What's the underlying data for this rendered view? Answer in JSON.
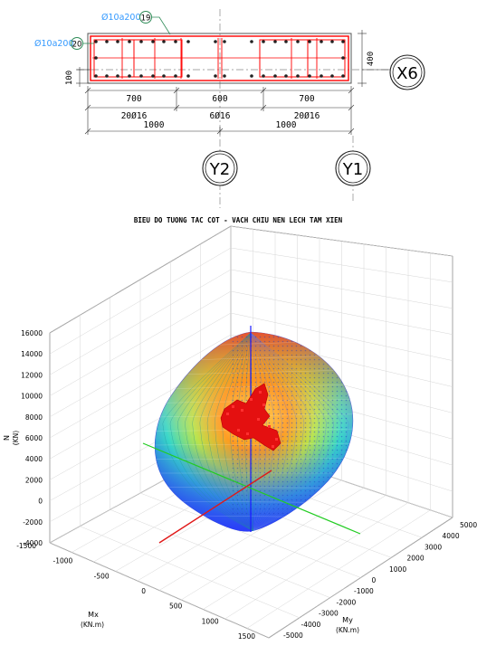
{
  "section": {
    "tags": [
      {
        "text": "Ø10a200",
        "num": "19"
      },
      {
        "text": "Ø10a200",
        "num": "20"
      }
    ],
    "dims_top": [
      "700",
      "600",
      "700"
    ],
    "dims_bars": [
      "20Ø16",
      "6Ø16",
      "20Ø16"
    ],
    "dims_half": [
      "1000",
      "1000"
    ],
    "cover_left": "100",
    "height_right": "400",
    "axes": [
      "X6",
      "Y2",
      "Y1"
    ],
    "colors": {
      "wall_outline": "#ff0000",
      "tag_text": "#3399ff",
      "tag_circle": "#2e8b57"
    }
  },
  "chart_data": {
    "type": "scatter3d",
    "title": "BIEU DO TUONG TAC COT - VACH CHIU NEN LECH TAM XIEN",
    "z_axis": {
      "label": "N",
      "unit": "(KN)",
      "range": [
        -4000,
        16000
      ],
      "ticks": [
        "16000",
        "14000",
        "12000",
        "10000",
        "8000",
        "6000",
        "4000",
        "2000",
        "0",
        "-2000",
        "-4000"
      ]
    },
    "mx_axis": {
      "label": "Mx",
      "unit": "(KN.m)",
      "range": [
        -1500,
        1500
      ],
      "ticks": [
        "-1500",
        "-1000",
        "-500",
        "0",
        "500",
        "1000",
        "1500"
      ]
    },
    "my_axis": {
      "label": "My",
      "unit": "(KN.m)",
      "range": [
        -5000,
        5000
      ],
      "ticks": [
        "5000",
        "4000",
        "3000",
        "2000",
        "1000",
        "0",
        "-1000",
        "-2000",
        "-3000",
        "-4000",
        "-5000"
      ]
    },
    "surface": {
      "colormap": "jet",
      "n_max": 15200,
      "n_min": -3200,
      "mx_max": 1500,
      "my_max": 5000
    },
    "load_points": {
      "color": "#ff0000",
      "description_hidden": true
    },
    "grid": true
  }
}
